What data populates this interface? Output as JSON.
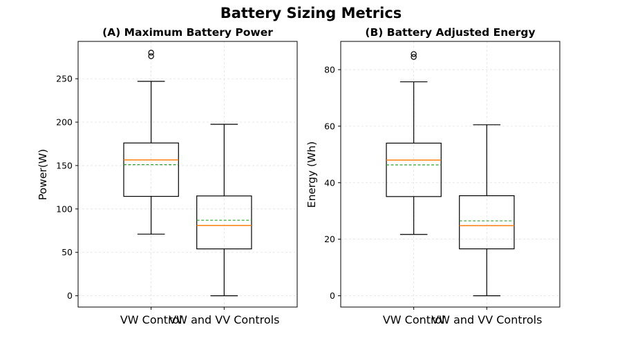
{
  "figure": {
    "suptitle": "Battery Sizing Metrics"
  },
  "chart_data": [
    {
      "type": "box",
      "title": "(A) Maximum Battery Power",
      "xlabel": "",
      "ylabel": "Power(W)",
      "categories": [
        "VW Control",
        "VW and VV Controls"
      ],
      "ylim": [
        -13,
        293
      ],
      "yticks": [
        0,
        50,
        100,
        150,
        200,
        250
      ],
      "grid": true,
      "boxes": [
        {
          "name": "VW Control",
          "whisker_low": 71,
          "q1": 114.5,
          "median": 156.5,
          "mean": 151,
          "q3": 176,
          "whisker_high": 247,
          "outliers": [
            276,
            280
          ]
        },
        {
          "name": "VW and VV Controls",
          "whisker_low": 0,
          "q1": 54,
          "median": 81,
          "mean": 87,
          "q3": 115,
          "whisker_high": 197.5,
          "outliers": []
        }
      ]
    },
    {
      "type": "box",
      "title": "(B) Battery Adjusted Energy",
      "xlabel": "",
      "ylabel": "Energy (Wh)",
      "categories": [
        "VW Control",
        "VW and VV Controls"
      ],
      "ylim": [
        -4,
        90
      ],
      "yticks": [
        0,
        20,
        40,
        60,
        80
      ],
      "grid": true,
      "boxes": [
        {
          "name": "VW Control",
          "whisker_low": 21.7,
          "q1": 35.1,
          "median": 48,
          "mean": 46.3,
          "q3": 54,
          "whisker_high": 75.7,
          "outliers": [
            84.5,
            85.5
          ]
        },
        {
          "name": "VW and VV Controls",
          "whisker_low": 0,
          "q1": 16.6,
          "median": 24.8,
          "mean": 26.5,
          "q3": 35.4,
          "whisker_high": 60.5,
          "outliers": []
        }
      ]
    }
  ],
  "colors": {
    "median": "#ff7f0e",
    "mean": "#2ca02c",
    "box": "#000000",
    "grid": "#e0e0e0"
  }
}
